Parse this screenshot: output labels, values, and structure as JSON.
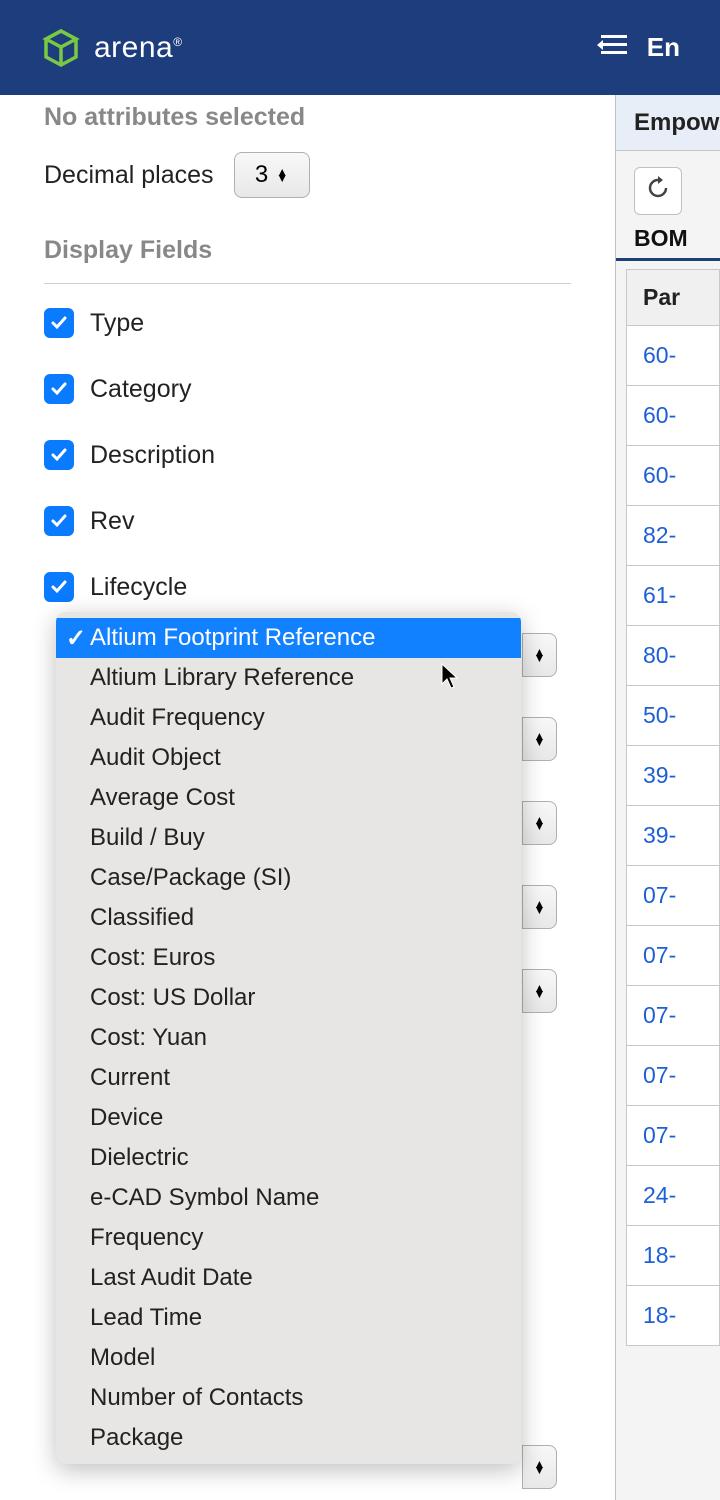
{
  "header": {
    "brand": "arena",
    "right_text": "En"
  },
  "panel": {
    "no_attributes": "No attributes selected",
    "decimal_label": "Decimal places",
    "decimal_value": "3",
    "display_fields_header": "Display Fields",
    "checkboxes": [
      {
        "label": "Type",
        "checked": true
      },
      {
        "label": "Category",
        "checked": true
      },
      {
        "label": "Description",
        "checked": true
      },
      {
        "label": "Rev",
        "checked": true
      },
      {
        "label": "Lifecycle",
        "checked": true
      }
    ]
  },
  "dropdown": {
    "selected_index": 0,
    "options": [
      "Altium Footprint Reference",
      "Altium Library Reference",
      "Audit Frequency",
      "Audit Object",
      "Average Cost",
      "Build / Buy",
      "Case/Package (SI)",
      "Classified",
      "Cost: Euros",
      "Cost: US Dollar",
      "Cost: Yuan",
      "Current",
      "Device",
      "Dielectric",
      "e-CAD Symbol Name",
      "Frequency",
      "Last Audit Date",
      "Lead Time",
      "Model",
      "Number of Contacts",
      "Package"
    ]
  },
  "right": {
    "breadcrumb": "Empow",
    "tab": "BOM",
    "col_header": "Par",
    "parts": [
      "60-",
      "60-",
      "60-",
      "82-",
      "61-",
      "80-",
      "50-",
      "39-",
      "39-",
      "07-",
      "07-",
      "07-",
      "07-",
      "07-",
      "24-",
      "18-",
      "18-"
    ]
  }
}
